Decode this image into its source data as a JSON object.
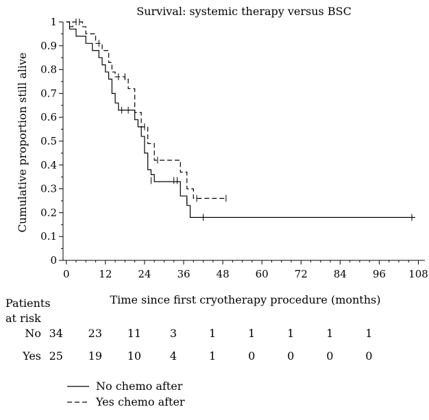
{
  "chart_data": {
    "type": "line",
    "subtype": "kaplan-meier step",
    "title": "Survival: systemic therapy versus BSC",
    "xlabel": "Time since first cryotherapy procedure (months)",
    "ylabel": "Cumulative proportion still alive",
    "xlim": [
      -1,
      110
    ],
    "ylim": [
      0,
      1
    ],
    "x_ticks": [
      0,
      12,
      24,
      36,
      48,
      60,
      72,
      84,
      96,
      108
    ],
    "y_ticks": [
      0,
      0.1,
      0.2,
      0.3,
      0.4,
      0.5,
      0.6,
      0.7,
      0.8,
      0.9,
      1
    ],
    "grid": false,
    "legend_position": "bottom-left",
    "series": [
      {
        "name": "No chemo after",
        "line_style": "solid",
        "color": "#000000",
        "steps": [
          [
            0,
            1.0
          ],
          [
            1,
            0.97
          ],
          [
            3,
            0.94
          ],
          [
            6,
            0.91
          ],
          [
            8,
            0.88
          ],
          [
            10,
            0.85
          ],
          [
            11,
            0.82
          ],
          [
            12,
            0.79
          ],
          [
            13,
            0.76
          ],
          [
            14,
            0.7
          ],
          [
            15,
            0.66
          ],
          [
            16,
            0.63
          ],
          [
            21,
            0.59
          ],
          [
            22,
            0.56
          ],
          [
            23,
            0.52
          ],
          [
            24,
            0.45
          ],
          [
            25,
            0.38
          ],
          [
            26,
            0.36
          ],
          [
            27,
            0.33
          ],
          [
            35,
            0.27
          ],
          [
            37,
            0.23
          ],
          [
            38,
            0.18
          ],
          [
            107,
            0.18
          ]
        ],
        "censored": [
          [
            17,
            0.63
          ],
          [
            19,
            0.63
          ],
          [
            26,
            0.335
          ],
          [
            33,
            0.335
          ],
          [
            34,
            0.335
          ],
          [
            37,
            0.25
          ],
          [
            42,
            0.18
          ],
          [
            106,
            0.18
          ]
        ]
      },
      {
        "name": "Yes chemo after",
        "line_style": "dashed",
        "color": "#000000",
        "steps": [
          [
            0,
            1.0
          ],
          [
            1,
            0.98
          ],
          [
            2,
            1.0
          ],
          [
            5,
            0.98
          ],
          [
            6,
            0.95
          ],
          [
            9,
            0.91
          ],
          [
            11,
            0.88
          ],
          [
            13,
            0.83
          ],
          [
            14,
            0.79
          ],
          [
            15,
            0.77
          ],
          [
            18,
            0.76
          ],
          [
            19,
            0.72
          ],
          [
            21,
            0.62
          ],
          [
            23,
            0.56
          ],
          [
            25,
            0.49
          ],
          [
            27,
            0.42
          ],
          [
            29,
            0.42
          ],
          [
            35,
            0.37
          ],
          [
            37,
            0.3
          ],
          [
            39,
            0.26
          ],
          [
            49,
            0.26
          ]
        ],
        "censored": [
          [
            3,
            1.0
          ],
          [
            4,
            1.0
          ],
          [
            10,
            0.91
          ],
          [
            16,
            0.77
          ],
          [
            18,
            0.77
          ],
          [
            24,
            0.56
          ],
          [
            28,
            0.42
          ],
          [
            40,
            0.26
          ],
          [
            49,
            0.26
          ]
        ]
      }
    ],
    "risk_table": {
      "title": "Patients at risk",
      "times": [
        0,
        12,
        24,
        36,
        48,
        60,
        72,
        84,
        96
      ],
      "rows": [
        {
          "label": "No",
          "values": [
            34,
            23,
            11,
            3,
            1,
            1,
            1,
            1,
            1
          ]
        },
        {
          "label": "Yes",
          "values": [
            25,
            19,
            10,
            4,
            1,
            0,
            0,
            0,
            0
          ]
        }
      ]
    }
  }
}
